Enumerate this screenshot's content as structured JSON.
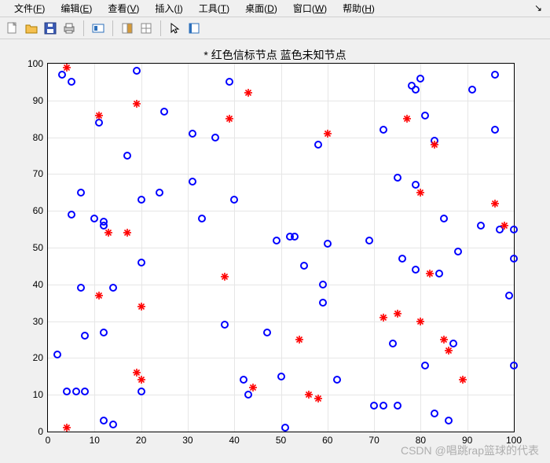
{
  "menubar": {
    "items": [
      {
        "label": "文件",
        "accel": "F"
      },
      {
        "label": "编辑",
        "accel": "E"
      },
      {
        "label": "查看",
        "accel": "V"
      },
      {
        "label": "插入",
        "accel": "I"
      },
      {
        "label": "工具",
        "accel": "T"
      },
      {
        "label": "桌面",
        "accel": "D"
      },
      {
        "label": "窗口",
        "accel": "W"
      },
      {
        "label": "帮助",
        "accel": "H"
      }
    ]
  },
  "chart": {
    "type": "scatter",
    "title": "* 红色信标节点 蓝色未知节点",
    "title_fontsize": 14,
    "background_color": "#ffffff",
    "grid_color": "#e6e6e6",
    "axis_color": "#000000",
    "xlim": [
      0,
      100
    ],
    "ylim": [
      0,
      100
    ],
    "xtick_step": 10,
    "ytick_step": 10,
    "xticks": [
      0,
      10,
      20,
      30,
      40,
      50,
      60,
      70,
      80,
      90,
      100
    ],
    "yticks": [
      0,
      10,
      20,
      30,
      40,
      50,
      60,
      70,
      80,
      90,
      100
    ],
    "series": {
      "blue": {
        "marker": "circle-open",
        "color": "#0000ff",
        "marker_size": 10,
        "line_width": 2,
        "points": [
          [
            2,
            21
          ],
          [
            3,
            97
          ],
          [
            4,
            11
          ],
          [
            5,
            95
          ],
          [
            5,
            59
          ],
          [
            6,
            11
          ],
          [
            7,
            65
          ],
          [
            7,
            39
          ],
          [
            8,
            26
          ],
          [
            8,
            11
          ],
          [
            10,
            58
          ],
          [
            11,
            84
          ],
          [
            12,
            57
          ],
          [
            12,
            56
          ],
          [
            12,
            27
          ],
          [
            12,
            3
          ],
          [
            14,
            39
          ],
          [
            14,
            2
          ],
          [
            17,
            75
          ],
          [
            19,
            98
          ],
          [
            20,
            63
          ],
          [
            20,
            46
          ],
          [
            20,
            11
          ],
          [
            24,
            65
          ],
          [
            25,
            87
          ],
          [
            31,
            81
          ],
          [
            31,
            68
          ],
          [
            33,
            58
          ],
          [
            36,
            80
          ],
          [
            38,
            29
          ],
          [
            39,
            95
          ],
          [
            40,
            63
          ],
          [
            42,
            14
          ],
          [
            43,
            10
          ],
          [
            47,
            27
          ],
          [
            49,
            52
          ],
          [
            50,
            15
          ],
          [
            51,
            1
          ],
          [
            52,
            53
          ],
          [
            53,
            53
          ],
          [
            55,
            45
          ],
          [
            58,
            78
          ],
          [
            59,
            40
          ],
          [
            59,
            35
          ],
          [
            60,
            51
          ],
          [
            62,
            14
          ],
          [
            69,
            52
          ],
          [
            70,
            7
          ],
          [
            72,
            82
          ],
          [
            72,
            7
          ],
          [
            74,
            24
          ],
          [
            75,
            69
          ],
          [
            75,
            7
          ],
          [
            76,
            47
          ],
          [
            78,
            94
          ],
          [
            79,
            67
          ],
          [
            79,
            93
          ],
          [
            79,
            44
          ],
          [
            80,
            96
          ],
          [
            81,
            18
          ],
          [
            81,
            86
          ],
          [
            83,
            5
          ],
          [
            83,
            79
          ],
          [
            84,
            43
          ],
          [
            85,
            58
          ],
          [
            86,
            3
          ],
          [
            87,
            24
          ],
          [
            88,
            49
          ],
          [
            91,
            93
          ],
          [
            93,
            56
          ],
          [
            96,
            82
          ],
          [
            96,
            97
          ],
          [
            97,
            55
          ],
          [
            99,
            37
          ],
          [
            100,
            18
          ],
          [
            100,
            47
          ],
          [
            100,
            55
          ]
        ]
      },
      "red": {
        "marker": "asterisk",
        "color": "#ff0000",
        "marker_size": 9,
        "points": [
          [
            4,
            99
          ],
          [
            4,
            1
          ],
          [
            11,
            86
          ],
          [
            11,
            37
          ],
          [
            13,
            54
          ],
          [
            17,
            54
          ],
          [
            19,
            89
          ],
          [
            19,
            16
          ],
          [
            20,
            34
          ],
          [
            20,
            14
          ],
          [
            38,
            42
          ],
          [
            39,
            85
          ],
          [
            43,
            92
          ],
          [
            44,
            12
          ],
          [
            54,
            25
          ],
          [
            56,
            10
          ],
          [
            58,
            9
          ],
          [
            60,
            81
          ],
          [
            72,
            31
          ],
          [
            75,
            32
          ],
          [
            77,
            85
          ],
          [
            80,
            30
          ],
          [
            80,
            65
          ],
          [
            82,
            43
          ],
          [
            83,
            78
          ],
          [
            85,
            25
          ],
          [
            86,
            22
          ],
          [
            89,
            14
          ],
          [
            96,
            62
          ],
          [
            98,
            56
          ]
        ]
      }
    }
  },
  "watermark": "CSDN @唱跳rap篮球的代表"
}
